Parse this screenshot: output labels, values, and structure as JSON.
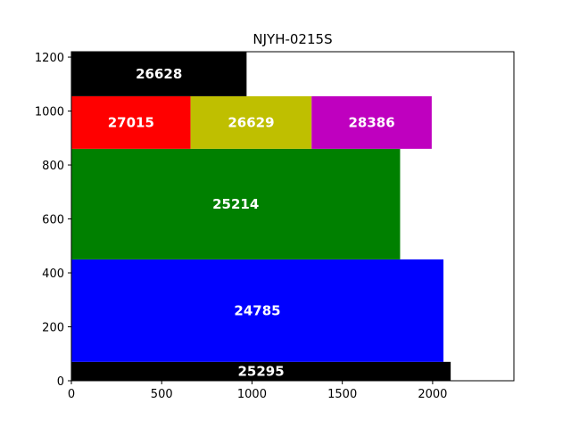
{
  "chart_data": {
    "type": "bar",
    "title": "NJYH-0215S",
    "xlabel": "",
    "ylabel": "",
    "xlim": [
      0,
      2450
    ],
    "ylim": [
      0,
      1220
    ],
    "x_ticks": [
      0,
      500,
      1000,
      1500,
      2000
    ],
    "y_ticks": [
      0,
      200,
      400,
      600,
      800,
      1000,
      1200
    ],
    "grid": false,
    "rects": [
      {
        "label": "25295",
        "x0": 0,
        "x1": 2100,
        "y0": 0,
        "y1": 70,
        "color": "#000000"
      },
      {
        "label": "24785",
        "x0": 0,
        "x1": 2060,
        "y0": 70,
        "y1": 450,
        "color": "#0000ff"
      },
      {
        "label": "25214",
        "x0": 0,
        "x1": 1820,
        "y0": 450,
        "y1": 860,
        "color": "#008000"
      },
      {
        "label": "27015",
        "x0": 0,
        "x1": 660,
        "y0": 860,
        "y1": 1055,
        "color": "#ff0000"
      },
      {
        "label": "26629",
        "x0": 660,
        "x1": 1330,
        "y0": 860,
        "y1": 1055,
        "color": "#bfbf00"
      },
      {
        "label": "28386",
        "x0": 1330,
        "x1": 1995,
        "y0": 860,
        "y1": 1055,
        "color": "#bf00bf"
      },
      {
        "label": "26628",
        "x0": 0,
        "x1": 970,
        "y0": 1055,
        "y1": 1220,
        "color": "#000000"
      }
    ]
  }
}
